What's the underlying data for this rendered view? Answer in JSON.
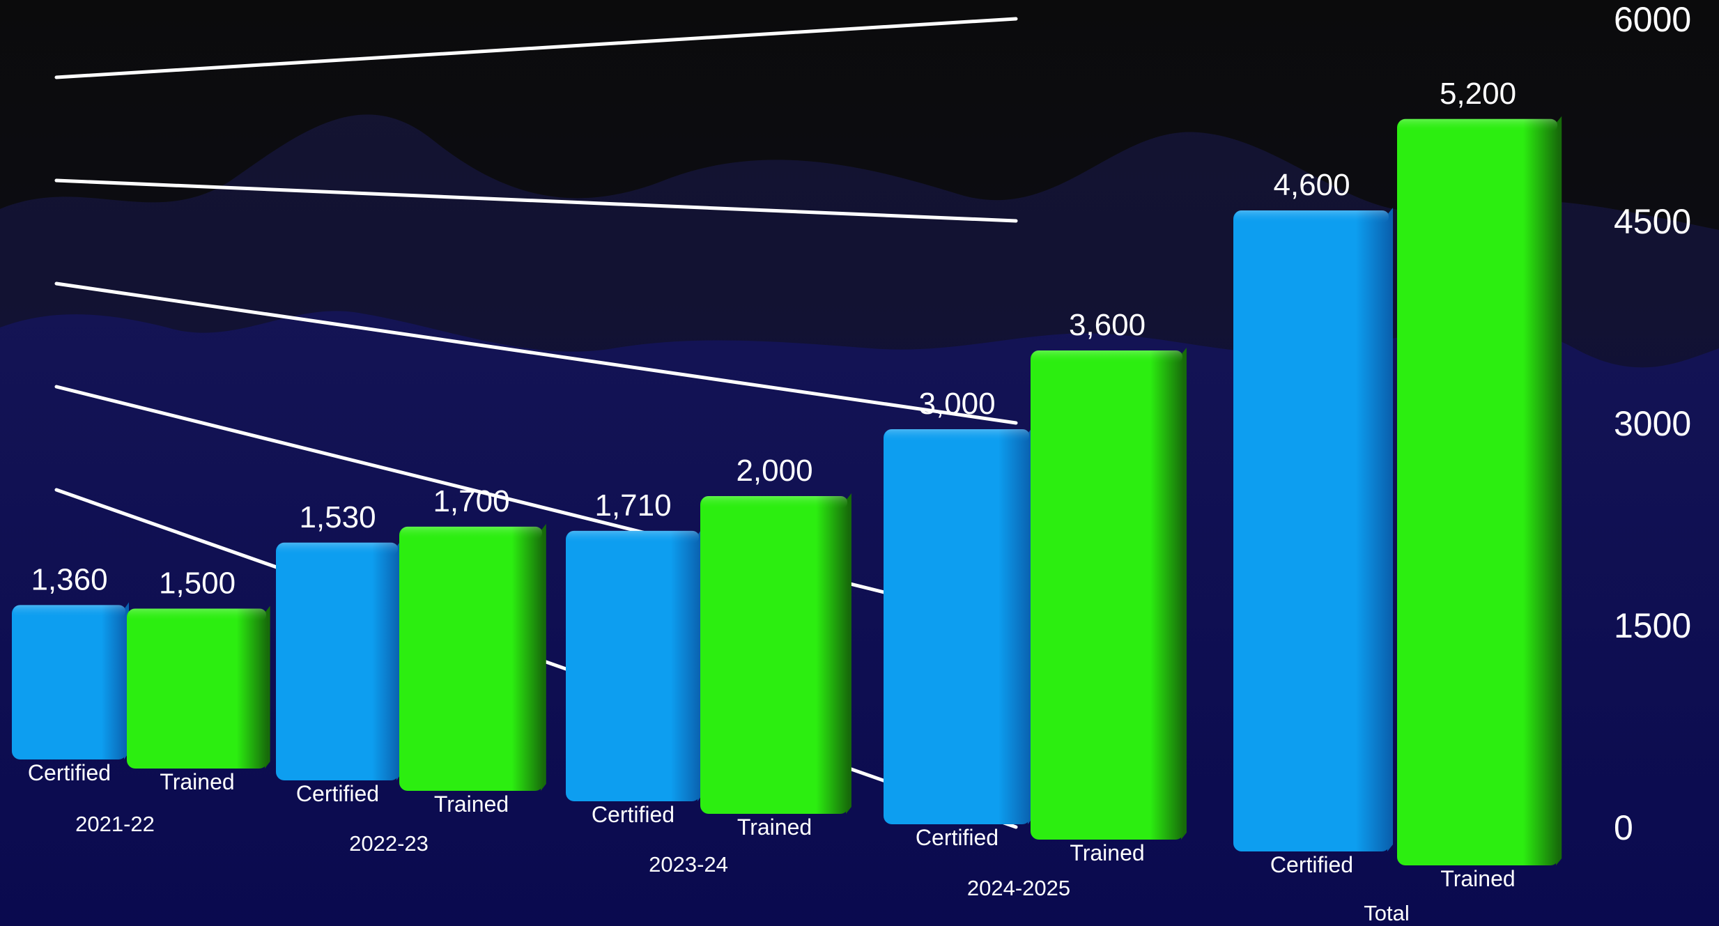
{
  "colors": {
    "certified": "#0d9ef0",
    "certified_dark": "#0a62b0",
    "trained": "#2cee10",
    "trained_dark": "#176b0a",
    "gridline": "#ffffff",
    "text": "#ffffff",
    "background_top": "#0b0b0c",
    "background_bottom": "#0c0c5c"
  },
  "chart_data": {
    "type": "bar",
    "categories": [
      "2021-22",
      "2022-23",
      "2023-24",
      "2024-2025",
      "Total"
    ],
    "series": [
      {
        "name": "Certified",
        "values": [
          1360,
          1530,
          1710,
          3000,
          4600
        ]
      },
      {
        "name": "Trained",
        "values": [
          1500,
          1700,
          2000,
          3600,
          5200
        ]
      }
    ],
    "value_labels": {
      "Certified": [
        "1,360",
        "1,530",
        "1,710",
        "3,000",
        "4,600"
      ],
      "Trained": [
        "1,500",
        "1,700",
        "2,000",
        "3,600",
        "5,200"
      ]
    },
    "y_ticks": [
      "0",
      "1500",
      "3000",
      "4500",
      "6000"
    ],
    "ylim": [
      0,
      6000
    ],
    "grid": true,
    "legend": "none",
    "title": "",
    "xlabel": "",
    "ylabel": ""
  }
}
